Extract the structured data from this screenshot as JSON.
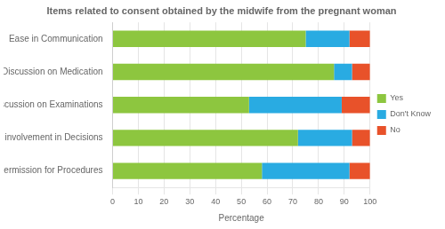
{
  "chart_data": {
    "type": "bar",
    "orientation": "horizontal",
    "stacked": true,
    "title": "Items related to consent obtained by the midwife from the pregnant woman",
    "categories": [
      "Ease in Communication",
      "Discussion on Medication",
      "Discussion on Examinations",
      "Clients' involvement in Decisions",
      "Permission for Procedures"
    ],
    "series": [
      {
        "name": "Yes",
        "color": "#8DC63F",
        "values": [
          75,
          86,
          53,
          72,
          58
        ]
      },
      {
        "name": "Don't Know",
        "color": "#29ABE2",
        "values": [
          17,
          7,
          36,
          21,
          34
        ]
      },
      {
        "name": "No",
        "color": "#E8522A",
        "values": [
          8,
          7,
          11,
          7,
          8
        ]
      }
    ],
    "xlabel": "Percentage",
    "xlim": [
      0,
      100
    ],
    "xticks": [
      0,
      10,
      20,
      30,
      40,
      50,
      60,
      70,
      80,
      90,
      100
    ],
    "grid": true,
    "legend": "right"
  }
}
